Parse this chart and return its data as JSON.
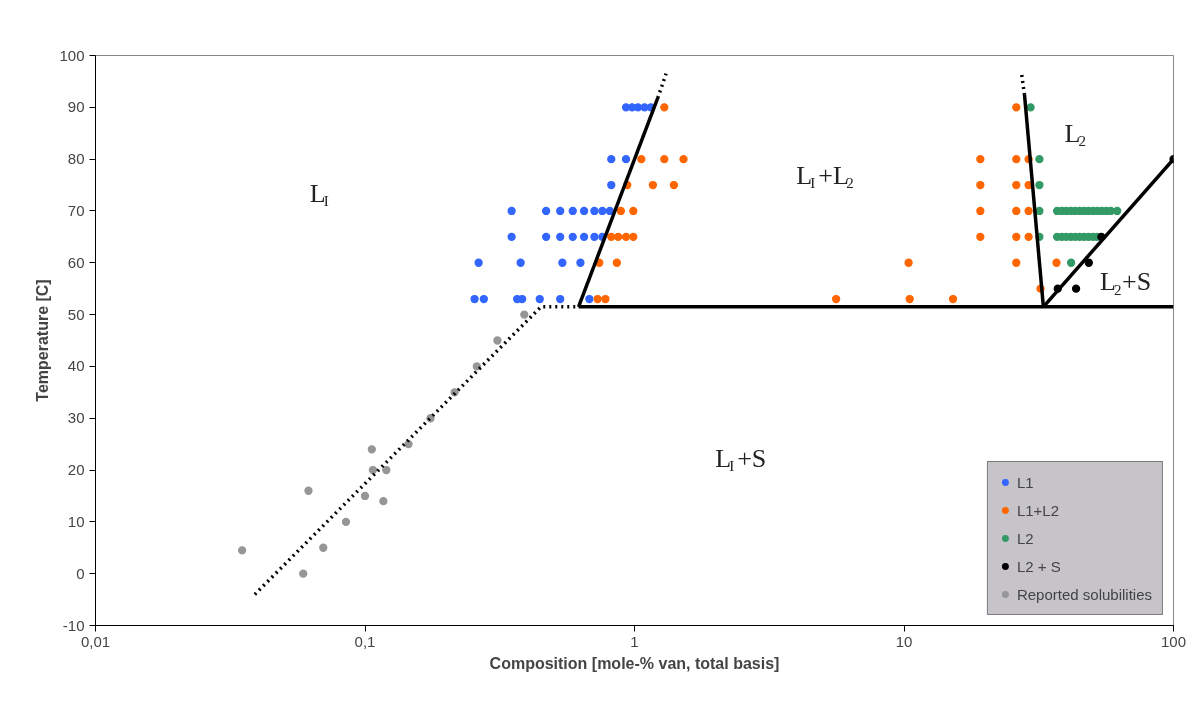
{
  "chart_data": {
    "type": "scatter",
    "xlabel": "Composition [mole-% van, total basis]",
    "ylabel": "Temperature [C]",
    "log": "x",
    "xlim": [
      0.01,
      100
    ],
    "xticks": [
      {
        "value": 0.01,
        "label": "0,01"
      },
      {
        "value": 0.1,
        "label": "0,1"
      },
      1,
      10,
      100
    ],
    "ylim": [
      -10,
      100
    ],
    "yticks": [
      -10,
      0,
      10,
      20,
      30,
      40,
      50,
      60,
      70,
      80,
      90,
      100
    ],
    "grid": false,
    "legend": "bottom right",
    "series": [
      {
        "name": "L1",
        "color": "#3366ff",
        "marker": "circle",
        "x": [
          0.93,
          0.98,
          1.03,
          1.09,
          1.15,
          0.82,
          0.93,
          0.82,
          0.35,
          0.47,
          0.53,
          0.59,
          0.65,
          0.71,
          0.76,
          0.81,
          0.35,
          0.47,
          0.53,
          0.59,
          0.65,
          0.71,
          0.76,
          0.264,
          0.378,
          0.54,
          0.63,
          0.255,
          0.276,
          0.367,
          0.383,
          0.445,
          0.53,
          0.68
        ],
        "values": [
          90,
          90,
          90,
          90,
          90,
          80,
          80,
          75,
          70,
          70,
          70,
          70,
          70,
          70,
          70,
          70,
          65,
          65,
          65,
          65,
          65,
          65,
          65,
          60,
          60,
          60,
          60,
          53,
          53,
          53,
          53,
          53,
          53,
          53
        ]
      },
      {
        "name": "L1+L2",
        "color": "#ff6600",
        "marker": "circle",
        "x": [
          1.29,
          1.06,
          1.29,
          1.52,
          0.94,
          1.17,
          1.4,
          0.89,
          0.99,
          0.82,
          0.87,
          0.93,
          0.99,
          0.74,
          0.86,
          0.73,
          0.78,
          26.1,
          19.2,
          26.1,
          29,
          19.2,
          26.1,
          29,
          19.2,
          26.1,
          29,
          19.2,
          26.1,
          29,
          10.4,
          26.1,
          36.8,
          32.1,
          5.6,
          10.5,
          15.2
        ],
        "values": [
          90,
          80,
          80,
          80,
          75,
          75,
          75,
          70,
          70,
          65,
          65,
          65,
          65,
          60,
          60,
          53,
          53,
          90,
          80,
          80,
          80,
          75,
          75,
          75,
          70,
          70,
          70,
          65,
          65,
          65,
          60,
          60,
          60,
          55,
          53,
          53,
          53
        ]
      },
      {
        "name": "L2",
        "color": "#339966",
        "marker": "circle",
        "x": [
          29.5,
          31.8,
          31.8,
          31.8,
          37,
          38.5,
          40,
          41.6,
          43.2,
          44.9,
          46.6,
          48.4,
          50.3,
          52.2,
          54.2,
          56.3,
          58.5,
          61.8,
          31.8,
          37,
          38.5,
          40,
          41.6,
          43.2,
          44.9,
          46.6,
          48.4,
          50.3,
          52,
          41.7
        ],
        "values": [
          90,
          80,
          75,
          70,
          70,
          70,
          70,
          70,
          70,
          70,
          70,
          70,
          70,
          70,
          70,
          70,
          70,
          70,
          65,
          65,
          65,
          65,
          65,
          65,
          65,
          65,
          65,
          65,
          65,
          60
        ]
      },
      {
        "name": "L2 + S",
        "color": "#000000",
        "marker": "circle",
        "x": [
          100,
          54,
          48.5,
          37.2,
          43.5
        ],
        "values": [
          80,
          65,
          60,
          55,
          55
        ]
      },
      {
        "name": "Reported solubilities",
        "color": "#969696",
        "marker": "circle",
        "x": [
          0.035,
          0.0617,
          0.059,
          0.07,
          0.085,
          0.1,
          0.106,
          0.107,
          0.117,
          0.12,
          0.145,
          0.175,
          0.215,
          0.26,
          0.31,
          0.39
        ],
        "values": [
          4.5,
          16,
          0,
          5,
          10,
          15,
          24,
          20,
          14,
          20,
          25,
          30,
          35,
          40,
          45,
          50
        ]
      },
      {
        "type": "line",
        "color": "#000000",
        "line_style": "solid",
        "x": [
          0.62,
          1.22
        ],
        "values": [
          51.5,
          91.8
        ]
      },
      {
        "type": "line",
        "color": "#000000",
        "line_style": "dotted",
        "x": [
          1.22,
          1.31
        ],
        "values": [
          91.8,
          96.5
        ]
      },
      {
        "type": "line",
        "color": "#000000",
        "line_style": "solid",
        "x": [
          0.62,
          100
        ],
        "values": [
          51.5,
          51.5
        ]
      },
      {
        "type": "line",
        "color": "#000000",
        "line_style": "solid",
        "x": [
          32.9,
          28
        ],
        "values": [
          51.5,
          92.4
        ]
      },
      {
        "type": "line",
        "color": "#000000",
        "line_style": "dotted",
        "x": [
          28,
          27.3
        ],
        "values": [
          92.4,
          96.5
        ]
      },
      {
        "type": "line",
        "color": "#000000",
        "line_style": "solid",
        "x": [
          32.9,
          100
        ],
        "values": [
          51.5,
          80
        ]
      },
      {
        "type": "line",
        "color": "#000000",
        "line_style": "dotted",
        "x": [
          0.039,
          0.45,
          0.62
        ],
        "values": [
          -4,
          51.5,
          51.5
        ]
      }
    ],
    "annotations": [
      "L$_{I}$",
      "L$_{I}$+L$_{2}$",
      "L$_{2}$",
      "L$_{2}$+S",
      "L$_{I}$+S"
    ]
  }
}
